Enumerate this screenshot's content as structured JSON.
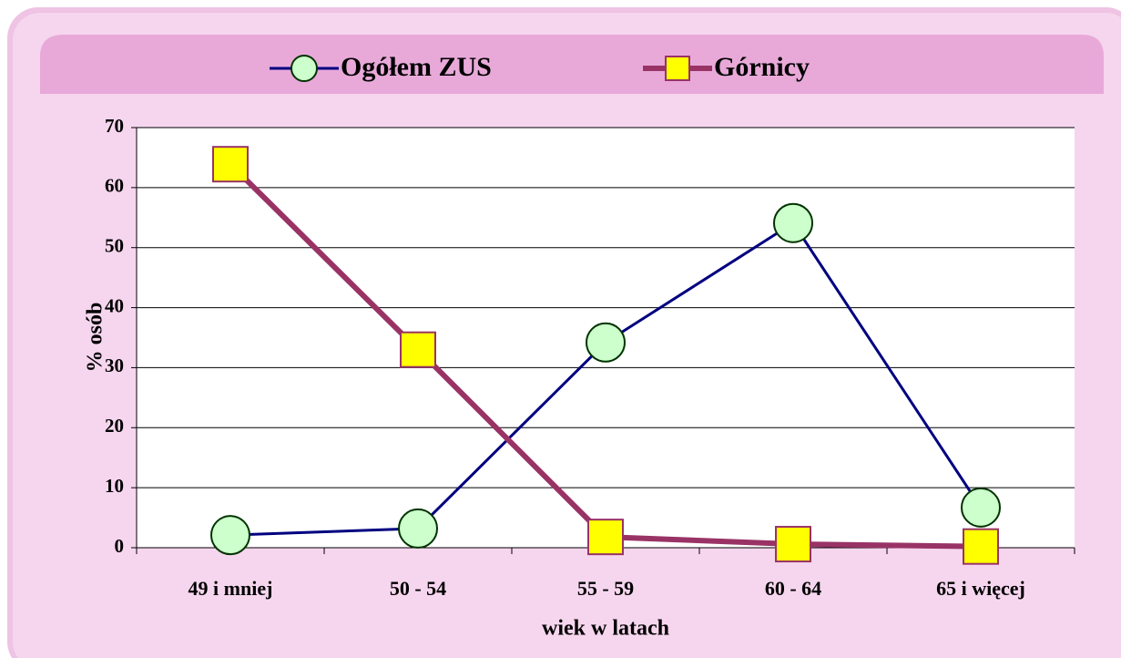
{
  "chart_data": {
    "type": "line",
    "categories": [
      "49 i mniej",
      "50 - 54",
      "55 - 59",
      "60 - 64",
      "65  i więcej"
    ],
    "series": [
      {
        "name": "Ogółem ZUS",
        "color": "#000080",
        "marker_fill": "#ccffcc",
        "values": [
          2.1,
          3.2,
          34.2,
          54.1,
          6.7
        ]
      },
      {
        "name": "Górnicy",
        "color": "#993366",
        "marker_fill": "#ffff00",
        "values": [
          63.9,
          33.0,
          1.8,
          0.6,
          0.2
        ]
      }
    ],
    "xlabel": "wiek w latach",
    "ylabel": "% osób",
    "ylim": [
      0,
      70
    ],
    "yticks": [
      0,
      10,
      20,
      30,
      40,
      50,
      60,
      70
    ],
    "grid": true,
    "legend": "top"
  }
}
